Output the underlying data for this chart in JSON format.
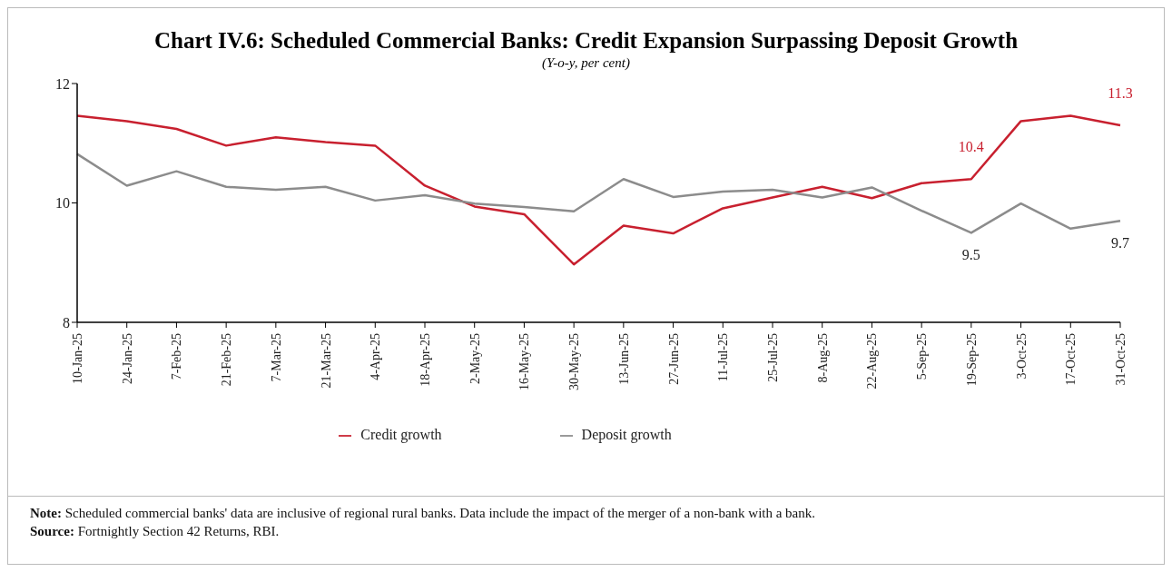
{
  "chart_data": {
    "type": "line",
    "title": "Chart IV.6: Scheduled Commercial Banks: Credit Expansion Surpassing Deposit Growth",
    "subtitle": "(Y-o-y, per cent)",
    "categories": [
      "10-Jan-25",
      "24-Jan-25",
      "7-Feb-25",
      "21-Feb-25",
      "7-Mar-25",
      "21-Mar-25",
      "4-Apr-25",
      "18-Apr-25",
      "2-May-25",
      "16-May-25",
      "30-May-25",
      "13-Jun-25",
      "27-Jun-25",
      "11-Jul-25",
      "25-Jul-25",
      "8-Aug-25",
      "22-Aug-25",
      "5-Sep-25",
      "19-Sep-25",
      "3-Oct-25",
      "17-Oct-25",
      "31-Oct-25"
    ],
    "series": [
      {
        "name": "Credit growth",
        "color": "#c8202f",
        "values": [
          11.46,
          11.37,
          11.24,
          10.96,
          11.1,
          11.02,
          10.96,
          10.29,
          9.94,
          9.81,
          8.97,
          9.62,
          9.49,
          9.91,
          10.09,
          10.27,
          10.08,
          10.33,
          10.4,
          11.37,
          11.46,
          11.3
        ],
        "value_labels": [
          null,
          null,
          null,
          null,
          null,
          null,
          null,
          null,
          null,
          null,
          null,
          null,
          null,
          null,
          null,
          null,
          null,
          null,
          "10.4",
          null,
          null,
          "11.3"
        ]
      },
      {
        "name": "Deposit growth",
        "color": "#8c8c8c",
        "values": [
          10.82,
          10.29,
          10.53,
          10.27,
          10.22,
          10.27,
          10.04,
          10.13,
          9.99,
          9.93,
          9.86,
          10.4,
          10.1,
          10.19,
          10.22,
          10.09,
          10.26,
          9.87,
          9.5,
          9.99,
          9.57,
          9.7
        ],
        "value_labels": [
          null,
          null,
          null,
          null,
          null,
          null,
          null,
          null,
          null,
          null,
          null,
          null,
          null,
          null,
          null,
          null,
          null,
          null,
          "9.5",
          null,
          null,
          "9.7"
        ]
      }
    ],
    "ylim": [
      8,
      12
    ],
    "yticks": [
      8,
      10,
      12
    ],
    "grid": false,
    "legend": "bottom",
    "marker": "none",
    "line_style": "solid",
    "annotations": [
      "Note: Scheduled commercial banks' data are inclusive of regional rural banks. Data include the impact of the merger of a non-bank with a bank.",
      "Source: Fortnightly Section 42 Returns, RBI."
    ]
  }
}
